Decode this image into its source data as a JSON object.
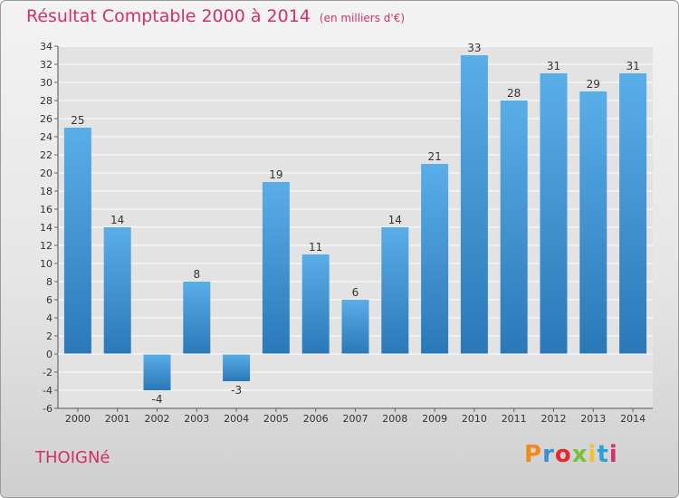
{
  "header": {
    "title": "Résultat Comptable 2000 à 2014",
    "subtitle": "(en milliers d'€)"
  },
  "footer": {
    "commune": "THOIGNé",
    "brand_letters": [
      "P",
      "r",
      "o",
      "x",
      "i",
      "t",
      "i"
    ],
    "brand_colors": [
      "#f08a1c",
      "#3b8fd6",
      "#e8262b",
      "#7cbf3a",
      "#f2c12e",
      "#2e9fd8",
      "#d2306b"
    ]
  },
  "chart_data": {
    "type": "bar",
    "categories": [
      "2000",
      "2001",
      "2002",
      "2003",
      "2004",
      "2005",
      "2006",
      "2007",
      "2008",
      "2009",
      "2010",
      "2011",
      "2012",
      "2013",
      "2014"
    ],
    "values": [
      25,
      14,
      -4,
      8,
      -3,
      19,
      11,
      6,
      14,
      21,
      33,
      28,
      31,
      29,
      31
    ],
    "data_labels": [
      "25",
      "14",
      "-4",
      "8",
      "-3",
      "19",
      "11",
      "6",
      "14",
      "21",
      "33",
      "28",
      "31",
      "29",
      "31"
    ],
    "ylim": [
      -6,
      34
    ],
    "yticks": [
      -6,
      -4,
      -2,
      0,
      2,
      4,
      6,
      8,
      10,
      12,
      14,
      16,
      18,
      20,
      22,
      24,
      26,
      28,
      30,
      32,
      34
    ],
    "xlabel": "",
    "ylabel": "",
    "grid": true,
    "colors": {
      "bar_top": "#5aaee8",
      "bar_bottom": "#2a78b8",
      "plot_bg": "#e3e3e3",
      "grid": "#ffffff",
      "title": "#d2306b"
    }
  }
}
